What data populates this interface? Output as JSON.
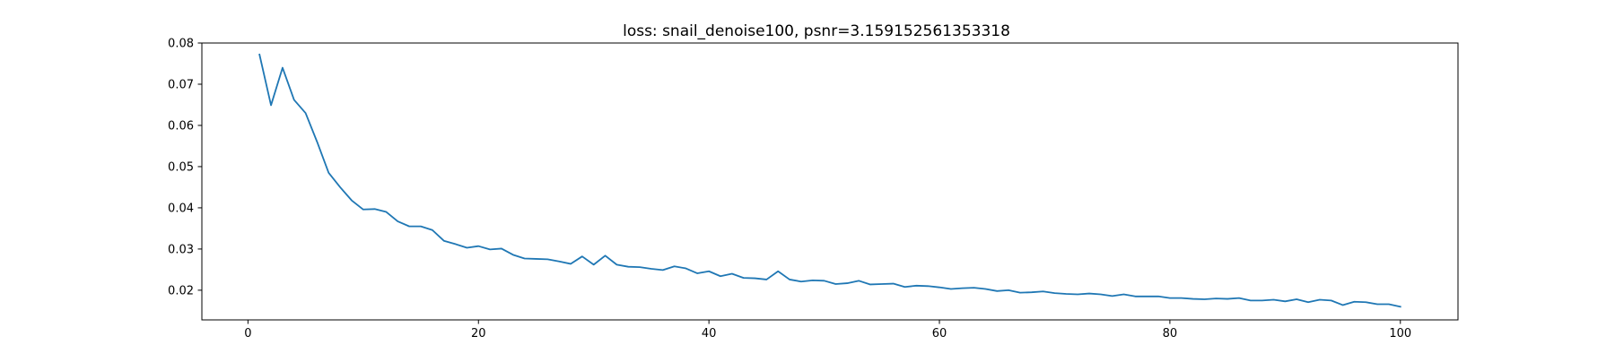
{
  "chart_data": {
    "type": "line",
    "title": "loss: snail_denoise100, psnr=3.159152561353318",
    "xlabel": "",
    "ylabel": "",
    "xlim": [
      -4,
      105
    ],
    "ylim": [
      0.0128,
      0.08
    ],
    "x_ticks": [
      0,
      20,
      40,
      60,
      80,
      100
    ],
    "x_tick_labels": [
      "0",
      "20",
      "40",
      "60",
      "80",
      "100"
    ],
    "y_ticks": [
      0.02,
      0.03,
      0.04,
      0.05,
      0.06,
      0.07,
      0.08
    ],
    "y_tick_labels": [
      "0.02",
      "0.03",
      "0.04",
      "0.05",
      "0.06",
      "0.07",
      "0.08"
    ],
    "grid": false,
    "legend": "none",
    "line_color": "#1f77b4",
    "series": [
      {
        "x": [
          1,
          2,
          3,
          4,
          5,
          6,
          7,
          8,
          9,
          10,
          11,
          12,
          13,
          14,
          15,
          16,
          17,
          18,
          19,
          20,
          21,
          22,
          23,
          24,
          25,
          26,
          27,
          28,
          29,
          30,
          31,
          32,
          33,
          34,
          35,
          36,
          37,
          38,
          39,
          40,
          41,
          42,
          43,
          44,
          45,
          46,
          47,
          48,
          49,
          50,
          51,
          52,
          53,
          54,
          55,
          56,
          57,
          58,
          59,
          60,
          61,
          62,
          63,
          64,
          65,
          66,
          67,
          68,
          69,
          70,
          71,
          72,
          73,
          74,
          75,
          76,
          77,
          78,
          79,
          80,
          81,
          82,
          83,
          84,
          85,
          86,
          87,
          88,
          89,
          90,
          91,
          92,
          93,
          94,
          95,
          96,
          97,
          98,
          99,
          100
        ],
        "values": [
          0.0772,
          0.0649,
          0.074,
          0.0662,
          0.063,
          0.056,
          0.0485,
          0.045,
          0.0418,
          0.0396,
          0.0397,
          0.039,
          0.0367,
          0.0355,
          0.0355,
          0.0346,
          0.032,
          0.0312,
          0.0303,
          0.0307,
          0.0299,
          0.0301,
          0.0286,
          0.0277,
          0.0276,
          0.0275,
          0.027,
          0.0264,
          0.0282,
          0.0262,
          0.0284,
          0.0262,
          0.0257,
          0.0256,
          0.0252,
          0.0249,
          0.0258,
          0.0253,
          0.0241,
          0.0246,
          0.0234,
          0.024,
          0.023,
          0.0229,
          0.0226,
          0.0246,
          0.0226,
          0.0221,
          0.0224,
          0.0223,
          0.0215,
          0.0217,
          0.0223,
          0.0214,
          0.0215,
          0.0216,
          0.0208,
          0.0211,
          0.021,
          0.0207,
          0.0203,
          0.0205,
          0.0206,
          0.0203,
          0.0198,
          0.02,
          0.0194,
          0.0195,
          0.0197,
          0.0193,
          0.0191,
          0.019,
          0.0192,
          0.019,
          0.0186,
          0.019,
          0.0185,
          0.0185,
          0.0185,
          0.0181,
          0.0181,
          0.0179,
          0.0178,
          0.018,
          0.0179,
          0.0181,
          0.0175,
          0.0175,
          0.0177,
          0.0173,
          0.0178,
          0.0171,
          0.0177,
          0.0175,
          0.0164,
          0.0172,
          0.0171,
          0.0166,
          0.0166,
          0.016
        ]
      }
    ]
  }
}
